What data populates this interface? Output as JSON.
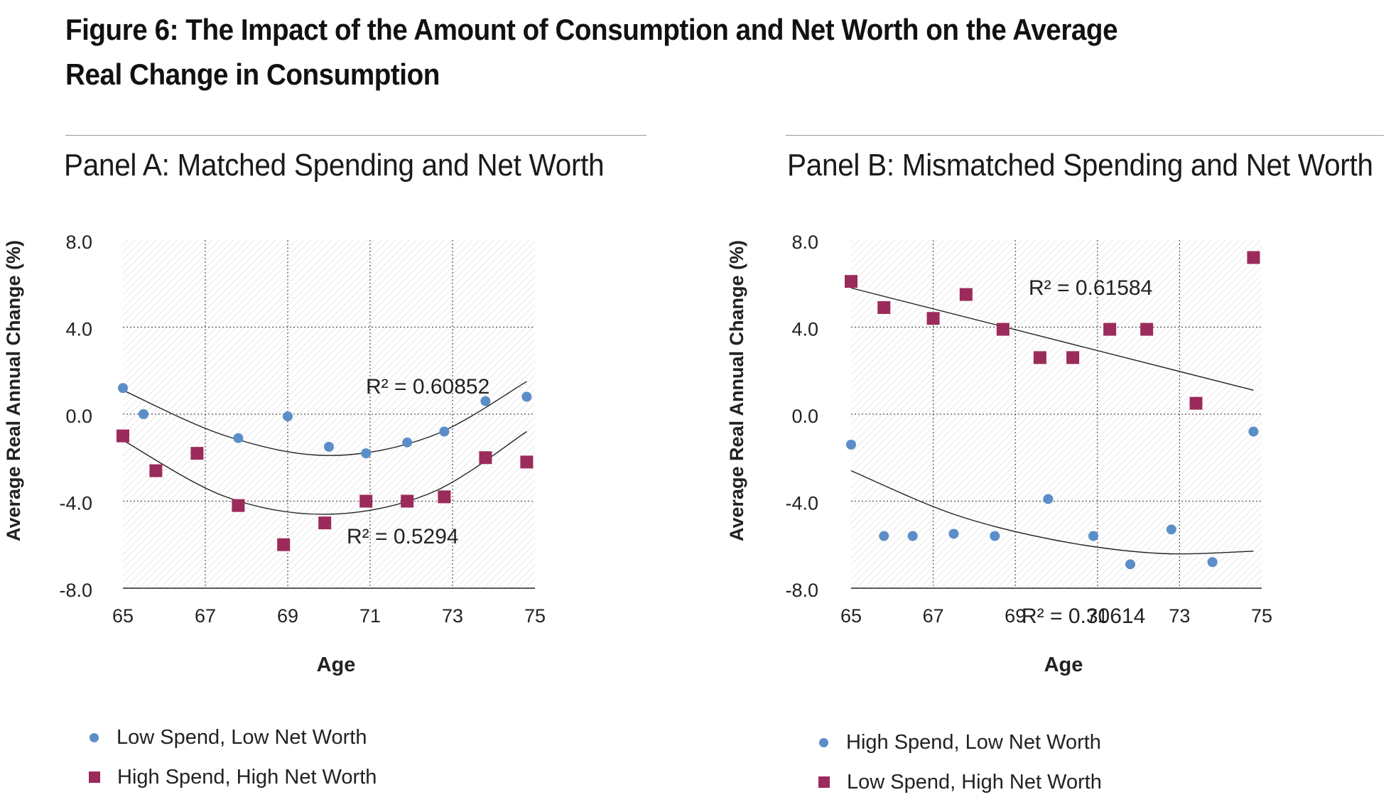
{
  "figure": {
    "title_line1": "Figure 6: The Impact of the Amount of Consumption and Net Worth on the Average",
    "title_line2": "Real Change in Consumption"
  },
  "colors": {
    "blue": "#5b8ec9",
    "maroon": "#9b2b5a",
    "grid": "#555555",
    "hatch": "#d8d8d8"
  },
  "chart_data": [
    {
      "type": "scatter",
      "panel": "Panel A: Matched Spending and Net Worth",
      "xlabel": "Age",
      "ylabel": "Average Real Annual Change (%)",
      "xlim": [
        65,
        75
      ],
      "ylim": [
        -8,
        8
      ],
      "x_ticks": [
        "65",
        "67",
        "69",
        "71",
        "73",
        "75"
      ],
      "y_ticks": [
        "8.0",
        "4.0",
        "0.0",
        "-4.0",
        "-8.0"
      ],
      "grid": true,
      "legend_position": "bottom-left",
      "series": [
        {
          "name": "Low Spend, Low Net Worth",
          "marker": "circle",
          "color": "#5b8ec9",
          "points": [
            [
              65.0,
              1.2
            ],
            [
              65.5,
              0.0
            ],
            [
              67.8,
              -1.1
            ],
            [
              69.0,
              -0.1
            ],
            [
              70.0,
              -1.5
            ],
            [
              70.9,
              -1.8
            ],
            [
              71.9,
              -1.3
            ],
            [
              72.8,
              -0.8
            ],
            [
              73.8,
              0.6
            ],
            [
              74.8,
              0.8
            ]
          ],
          "trend_label": "R² = 0.60852",
          "trend": [
            [
              65.0,
              1.1
            ],
            [
              67.5,
              -1.0
            ],
            [
              70.0,
              -1.9
            ],
            [
              72.5,
              -1.0
            ],
            [
              74.8,
              1.5
            ]
          ]
        },
        {
          "name": "High Spend, High Net Worth",
          "marker": "square",
          "color": "#9b2b5a",
          "points": [
            [
              65.0,
              -1.0
            ],
            [
              65.8,
              -2.6
            ],
            [
              66.8,
              -1.8
            ],
            [
              67.8,
              -4.2
            ],
            [
              68.9,
              -6.0
            ],
            [
              69.9,
              -5.0
            ],
            [
              70.9,
              -4.0
            ],
            [
              71.9,
              -4.0
            ],
            [
              72.8,
              -3.8
            ],
            [
              73.8,
              -2.0
            ],
            [
              74.8,
              -2.2
            ]
          ],
          "trend_label": "R² = 0.5294",
          "trend": [
            [
              65.0,
              -1.2
            ],
            [
              67.5,
              -3.8
            ],
            [
              70.0,
              -4.6
            ],
            [
              72.5,
              -3.6
            ],
            [
              74.8,
              -0.8
            ]
          ]
        }
      ]
    },
    {
      "type": "scatter",
      "panel": "Panel B: Mismatched Spending and Net Worth",
      "xlabel": "Age",
      "ylabel": "Average Real Annual Change (%)",
      "xlim": [
        65,
        75
      ],
      "ylim": [
        -8,
        8
      ],
      "x_ticks": [
        "65",
        "67",
        "69",
        "71",
        "73",
        "75"
      ],
      "y_ticks": [
        "8.0",
        "4.0",
        "0.0",
        "-4.0",
        "-8.0"
      ],
      "grid": true,
      "legend_position": "bottom-left",
      "series": [
        {
          "name": "High Spend, Low Net Worth",
          "marker": "circle",
          "color": "#5b8ec9",
          "points": [
            [
              65.0,
              -1.4
            ],
            [
              65.8,
              -5.6
            ],
            [
              66.5,
              -5.6
            ],
            [
              67.5,
              -5.5
            ],
            [
              68.5,
              -5.6
            ],
            [
              69.8,
              -3.9
            ],
            [
              70.9,
              -5.6
            ],
            [
              71.8,
              -6.9
            ],
            [
              72.8,
              -5.3
            ],
            [
              73.8,
              -6.8
            ],
            [
              74.8,
              -0.8
            ]
          ],
          "trend_label": "R² = 0.30614",
          "trend": [
            [
              65.0,
              -2.6
            ],
            [
              67.5,
              -4.6
            ],
            [
              70.0,
              -5.8
            ],
            [
              72.5,
              -6.4
            ],
            [
              74.8,
              -6.3
            ]
          ]
        },
        {
          "name": "Low Spend, High Net Worth",
          "marker": "square",
          "color": "#9b2b5a",
          "points": [
            [
              65.0,
              6.1
            ],
            [
              65.8,
              4.9
            ],
            [
              67.0,
              4.4
            ],
            [
              67.8,
              5.5
            ],
            [
              68.7,
              3.9
            ],
            [
              69.6,
              2.6
            ],
            [
              70.4,
              2.6
            ],
            [
              71.3,
              3.9
            ],
            [
              72.2,
              3.9
            ],
            [
              73.4,
              0.5
            ],
            [
              74.8,
              7.2
            ]
          ],
          "trend_label": "R² = 0.61584",
          "trend": [
            [
              65.0,
              5.8
            ],
            [
              74.8,
              1.1
            ]
          ]
        }
      ]
    }
  ]
}
